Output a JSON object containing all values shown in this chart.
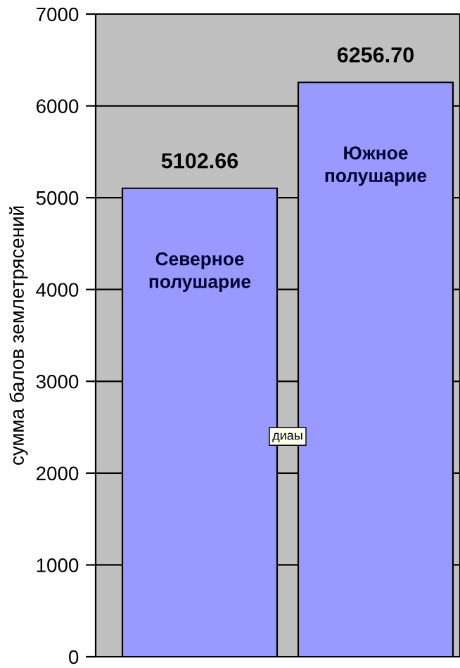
{
  "chart_data": {
    "type": "bar",
    "categories": [
      "Северное полушарие",
      "Южное полушарие"
    ],
    "values": [
      5102.66,
      6256.7
    ],
    "value_labels": [
      "5102.66",
      "6256.70"
    ],
    "color": "#9999ff",
    "ylabel": "сумма балов землетрясений",
    "ylim": [
      0,
      7000
    ],
    "yticks": [
      0,
      1000,
      2000,
      3000,
      4000,
      5000,
      6000,
      7000
    ],
    "grid": "y",
    "legend": false,
    "annotations": [
      "диаы"
    ]
  }
}
